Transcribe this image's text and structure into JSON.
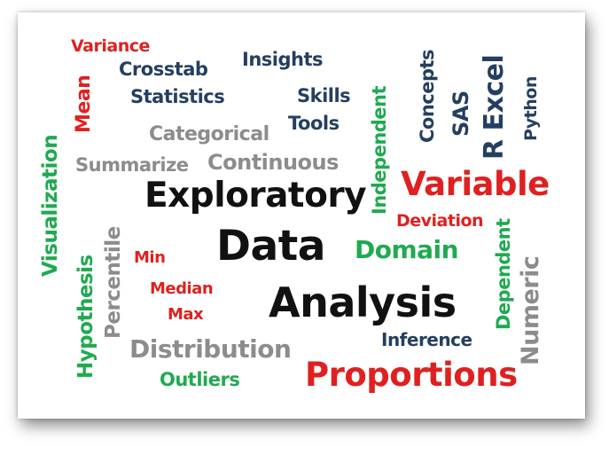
{
  "colors": {
    "black": "#111111",
    "navy": "#243f60",
    "gray": "#8c8c8c",
    "red": "#e02020",
    "green": "#1faa50"
  },
  "words": {
    "exploratory": "Exploratory",
    "data": "Data",
    "analysis": "Analysis",
    "variance": "Variance",
    "mean": "Mean",
    "crosstab": "Crosstab",
    "statistics": "Statistics",
    "insights": "Insights",
    "skills": "Skills",
    "tools": "Tools",
    "categorical": "Categorical",
    "summarize": "Summarize",
    "continuous": "Continuous",
    "visualization": "Visualization",
    "independent": "Independent",
    "concepts": "Concepts",
    "sas": "SAS",
    "r_excel": "R Excel",
    "python": "Python",
    "variable": "Variable",
    "deviation": "Deviation",
    "domain": "Domain",
    "dependent": "Dependent",
    "numeric": "Numeric",
    "min": "Min",
    "percentile": "Percentile",
    "hypothesis": "Hypothesis",
    "median": "Median",
    "max": "Max",
    "distribution": "Distribution",
    "outliers": "Outliers",
    "proportions": "Proportions",
    "inference": "Inference"
  }
}
